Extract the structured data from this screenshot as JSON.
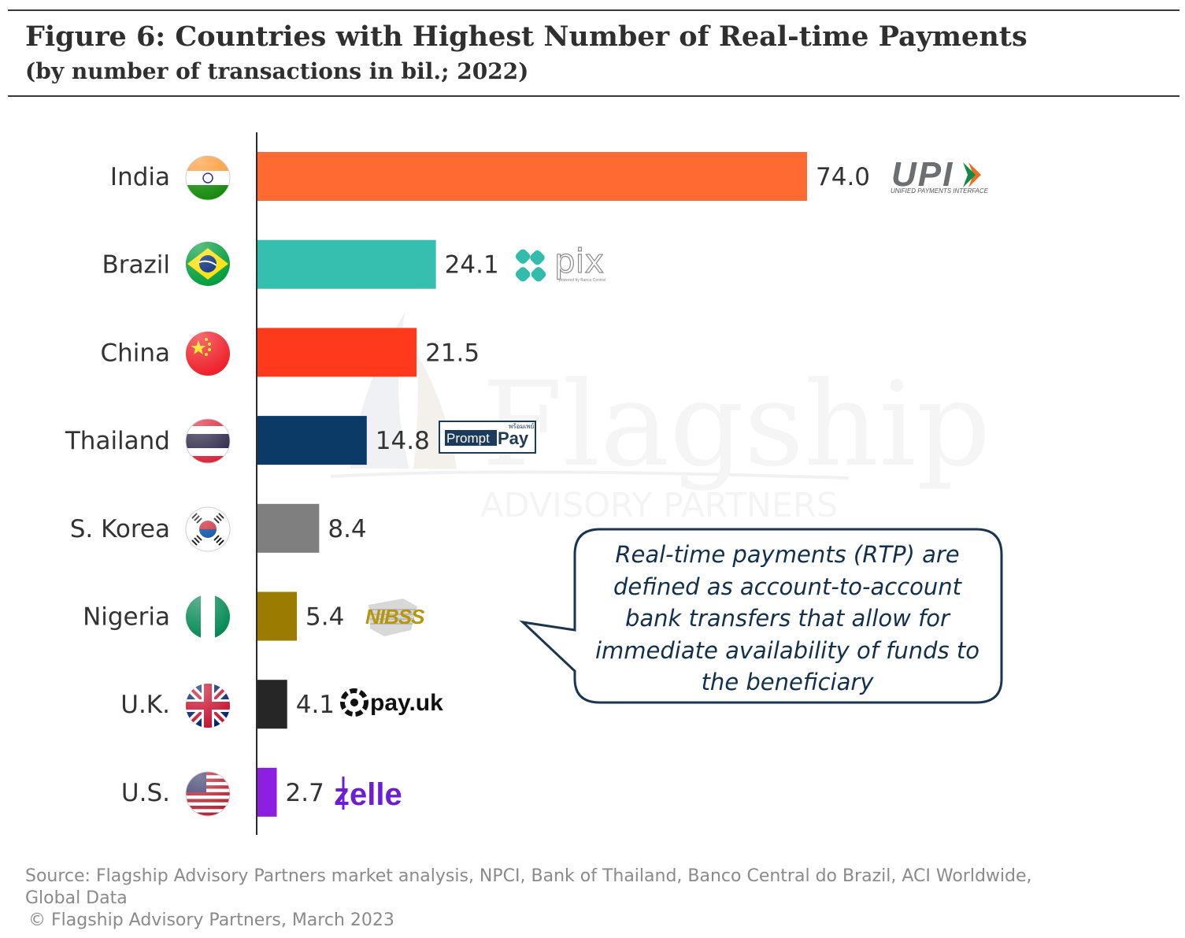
{
  "title": "Figure 6: Countries with Highest Number of Real-time Payments",
  "subtitle": "(by number of transactions in bil.; 2022)",
  "chart_data": {
    "type": "bar",
    "orientation": "horizontal",
    "categories": [
      "India",
      "Brazil",
      "China",
      "Thailand",
      "S. Korea",
      "Nigeria",
      "U.K.",
      "U.S."
    ],
    "values": [
      74.0,
      24.1,
      21.5,
      14.8,
      8.4,
      5.4,
      4.1,
      2.7
    ],
    "value_labels": [
      "74.0",
      "24.1",
      "21.5",
      "14.8",
      "8.4",
      "5.4",
      "4.1",
      "2.7"
    ],
    "colors": [
      "#ff6a33",
      "#35bfae",
      "#ff3a1c",
      "#0c3a67",
      "#7f7f7f",
      "#9b7c00",
      "#262626",
      "#8c1fe0"
    ],
    "xlim": [
      0,
      74.0
    ],
    "grid": false
  },
  "logos": [
    {
      "name": "upi",
      "text": "UPI",
      "subtext": "UNIFIED PAYMENTS INTERFACE"
    },
    {
      "name": "pix",
      "text": "pix",
      "subtext": "powered by Banco Central"
    },
    {
      "name": "promptpay",
      "text_a": "Prompt",
      "text_b": "Pay",
      "subtext": "พร้อมเพย์"
    },
    {
      "name": "nibss",
      "text": "NIBSS"
    },
    {
      "name": "payuk",
      "text": "pay.uk"
    },
    {
      "name": "zelle",
      "text": "zelle"
    }
  ],
  "flags": [
    "india-flag-icon",
    "brazil-flag-icon",
    "china-flag-icon",
    "thailand-flag-icon",
    "south-korea-flag-icon",
    "nigeria-flag-icon",
    "uk-flag-icon",
    "us-flag-icon"
  ],
  "watermark": {
    "line1": "Flagship",
    "line2": "ADVISORY PARTNERS"
  },
  "callout": "Real-time payments (RTP) are defined as account-to-account bank transfers that allow for immediate availability of funds to the beneficiary",
  "source": {
    "line1": "Source: Flagship Advisory Partners market analysis, NPCI, Bank of Thailand, Banco Central do Brazil, ACI Worldwide,",
    "line2": "Global Data",
    "copyright": "© Flagship Advisory Partners, March 2023"
  }
}
